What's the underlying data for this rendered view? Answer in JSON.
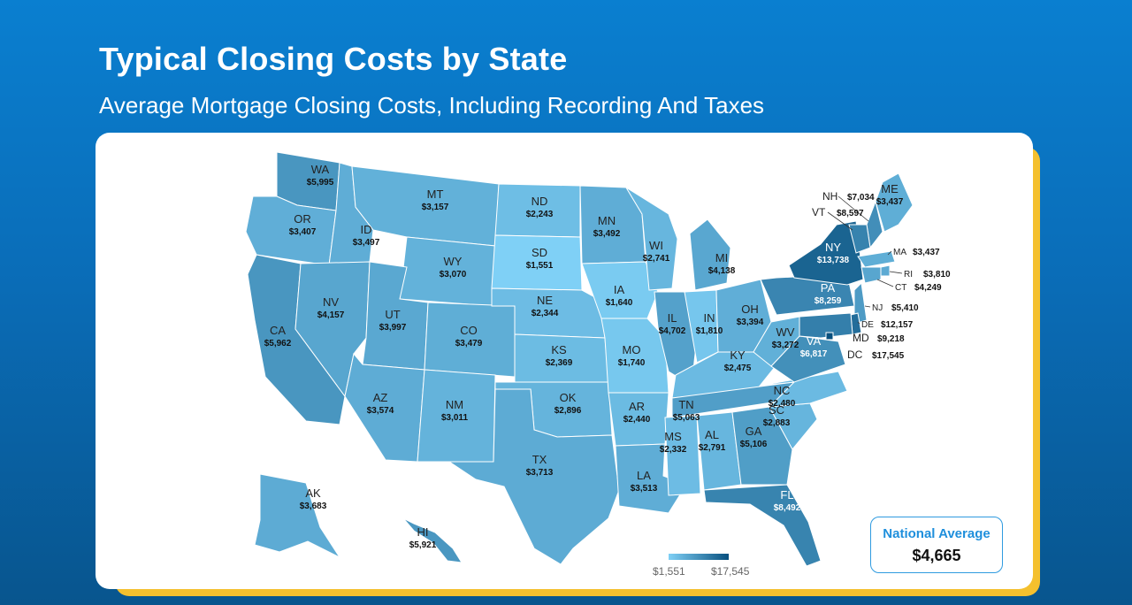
{
  "header": {
    "title": "Typical Closing Costs by State",
    "subtitle": "Average Mortgage Closing Costs, Including Recording And Taxes"
  },
  "national_average": {
    "label": "National Average",
    "value": "$4,665"
  },
  "legend": {
    "min_label": "$1,551",
    "max_label": "$17,545",
    "min": 1551,
    "max": 17545,
    "color_low": "#7fd0f6",
    "color_high": "#08507f"
  },
  "states": [
    {
      "abbr": "WA",
      "cost": "$5,995",
      "value": 5995
    },
    {
      "abbr": "OR",
      "cost": "$3,407",
      "value": 3407
    },
    {
      "abbr": "CA",
      "cost": "$5,962",
      "value": 5962
    },
    {
      "abbr": "ID",
      "cost": "$3,497",
      "value": 3497
    },
    {
      "abbr": "NV",
      "cost": "$4,157",
      "value": 4157
    },
    {
      "abbr": "MT",
      "cost": "$3,157",
      "value": 3157
    },
    {
      "abbr": "WY",
      "cost": "$3,070",
      "value": 3070
    },
    {
      "abbr": "UT",
      "cost": "$3,997",
      "value": 3997
    },
    {
      "abbr": "CO",
      "cost": "$3,479",
      "value": 3479
    },
    {
      "abbr": "AZ",
      "cost": "$3,574",
      "value": 3574
    },
    {
      "abbr": "NM",
      "cost": "$3,011",
      "value": 3011
    },
    {
      "abbr": "ND",
      "cost": "$2,243",
      "value": 2243
    },
    {
      "abbr": "SD",
      "cost": "$1,551",
      "value": 1551
    },
    {
      "abbr": "NE",
      "cost": "$2,344",
      "value": 2344
    },
    {
      "abbr": "KS",
      "cost": "$2,369",
      "value": 2369
    },
    {
      "abbr": "OK",
      "cost": "$2,896",
      "value": 2896
    },
    {
      "abbr": "TX",
      "cost": "$3,713",
      "value": 3713
    },
    {
      "abbr": "MN",
      "cost": "$3,492",
      "value": 3492
    },
    {
      "abbr": "IA",
      "cost": "$1,640",
      "value": 1640
    },
    {
      "abbr": "MO",
      "cost": "$1,740",
      "value": 1740
    },
    {
      "abbr": "AR",
      "cost": "$2,440",
      "value": 2440
    },
    {
      "abbr": "LA",
      "cost": "$3,513",
      "value": 3513
    },
    {
      "abbr": "WI",
      "cost": "$2,741",
      "value": 2741
    },
    {
      "abbr": "IL",
      "cost": "$4,702",
      "value": 4702
    },
    {
      "abbr": "MI",
      "cost": "$4,138",
      "value": 4138
    },
    {
      "abbr": "IN",
      "cost": "$1,810",
      "value": 1810
    },
    {
      "abbr": "OH",
      "cost": "$3,394",
      "value": 3394
    },
    {
      "abbr": "KY",
      "cost": "$2,475",
      "value": 2475
    },
    {
      "abbr": "TN",
      "cost": "$5,063",
      "value": 5063
    },
    {
      "abbr": "MS",
      "cost": "$2,332",
      "value": 2332
    },
    {
      "abbr": "AL",
      "cost": "$2,791",
      "value": 2791
    },
    {
      "abbr": "GA",
      "cost": "$5,106",
      "value": 5106
    },
    {
      "abbr": "FL",
      "cost": "$8,492",
      "value": 8492
    },
    {
      "abbr": "SC",
      "cost": "$2,883",
      "value": 2883
    },
    {
      "abbr": "NC",
      "cost": "$2,480",
      "value": 2480
    },
    {
      "abbr": "VA",
      "cost": "$6,817",
      "value": 6817
    },
    {
      "abbr": "WV",
      "cost": "$3,272",
      "value": 3272
    },
    {
      "abbr": "PA",
      "cost": "$8,259",
      "value": 8259
    },
    {
      "abbr": "NY",
      "cost": "$13,738",
      "value": 13738
    },
    {
      "abbr": "ME",
      "cost": "$3,437",
      "value": 3437
    },
    {
      "abbr": "NH",
      "cost": "$7,034",
      "value": 7034
    },
    {
      "abbr": "VT",
      "cost": "$8,597",
      "value": 8597
    },
    {
      "abbr": "MA",
      "cost": "$3,437",
      "value": 3437
    },
    {
      "abbr": "RI",
      "cost": "$3,810",
      "value": 3810
    },
    {
      "abbr": "CT",
      "cost": "$4,249",
      "value": 4249
    },
    {
      "abbr": "NJ",
      "cost": "$5,410",
      "value": 5410
    },
    {
      "abbr": "DE",
      "cost": "$12,157",
      "value": 12157
    },
    {
      "abbr": "MD",
      "cost": "$9,218",
      "value": 9218
    },
    {
      "abbr": "DC",
      "cost": "$17,545",
      "value": 17545
    },
    {
      "abbr": "AK",
      "cost": "$3,683",
      "value": 3683
    },
    {
      "abbr": "HI",
      "cost": "$5,921",
      "value": 5921
    }
  ]
}
